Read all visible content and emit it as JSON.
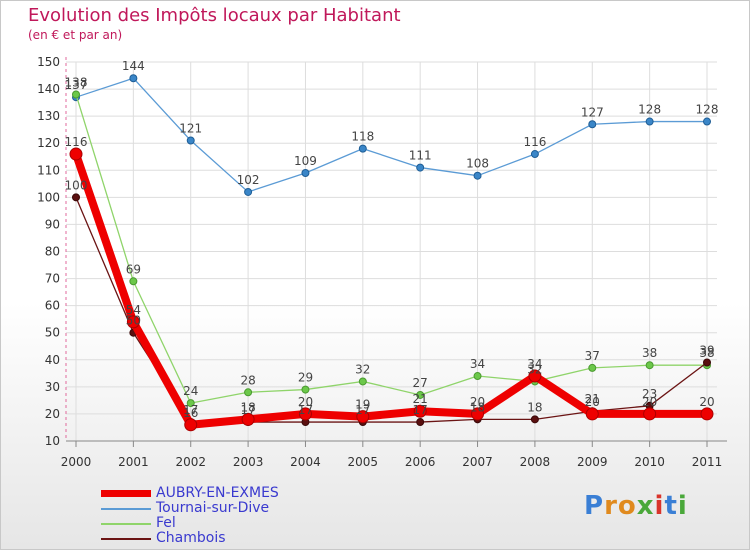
{
  "title": "Evolution des Impôts locaux par Habitant",
  "subtitle": "(en € et par an)",
  "logo": {
    "text": "Proxiti"
  },
  "chart_data": {
    "type": "line",
    "title": "Evolution des Impôts locaux par Habitant",
    "subtitle": "(en € et par an)",
    "xlabel": "",
    "ylabel": "",
    "ylim": [
      10,
      150
    ],
    "yticks": [
      10,
      20,
      30,
      40,
      50,
      60,
      70,
      80,
      90,
      100,
      110,
      120,
      130,
      140,
      150
    ],
    "categories": [
      "2000",
      "2001",
      "2002",
      "2003",
      "2004",
      "2005",
      "2006",
      "2007",
      "2008",
      "2009",
      "2010",
      "2011"
    ],
    "grid": true,
    "legend_position": "bottom-left",
    "series": [
      {
        "name": "AUBRY-EN-EXMES",
        "color": "#ee0000",
        "values": [
          116,
          54,
          16,
          18,
          20,
          19,
          21,
          20,
          34,
          20,
          20,
          20
        ]
      },
      {
        "name": "Tournai-sur-Dive",
        "color": "#5b9bd5",
        "values": [
          137,
          144,
          121,
          102,
          109,
          118,
          111,
          108,
          116,
          127,
          128,
          128
        ]
      },
      {
        "name": "Fel",
        "color": "#8fd46a",
        "values": [
          138,
          69,
          24,
          28,
          29,
          32,
          27,
          34,
          32,
          37,
          38,
          38
        ]
      },
      {
        "name": "Chambois",
        "color": "#6b1414",
        "values": [
          100,
          50,
          17,
          17,
          17,
          17,
          17,
          18,
          18,
          21,
          23,
          39
        ]
      }
    ]
  }
}
